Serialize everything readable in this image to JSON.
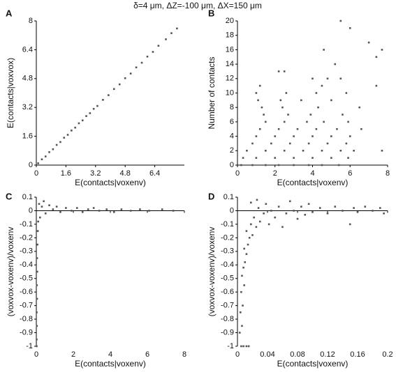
{
  "title": "δ=4 μm, ΔZ=-100 μm, ΔX=150 μm",
  "chart_data": [
    {
      "type": "scatter",
      "label": "A",
      "xlabel": "E(contacts|voxenv)",
      "ylabel": "E(contacts|voxvox)",
      "color": "#555555",
      "xlim": [
        0,
        8
      ],
      "ylim": [
        0,
        8
      ],
      "xticks": [
        0,
        1.6,
        3.2,
        4.8,
        6.4
      ],
      "yticks": [
        0,
        1.6,
        3.2,
        4.8,
        6.4,
        8
      ],
      "x": [
        0.1,
        0.3,
        0.5,
        0.7,
        0.9,
        1.1,
        1.3,
        1.5,
        1.7,
        1.9,
        2.1,
        2.3,
        2.5,
        2.7,
        2.9,
        3.1,
        3.3,
        3.6,
        3.9,
        4.2,
        4.5,
        4.8,
        5.1,
        5.4,
        5.7,
        6.0,
        6.3,
        6.6,
        7.0,
        7.3,
        7.6
      ],
      "values": [
        0.1,
        0.32,
        0.48,
        0.72,
        0.88,
        1.12,
        1.28,
        1.52,
        1.68,
        1.92,
        2.08,
        2.32,
        2.48,
        2.72,
        2.88,
        3.12,
        3.28,
        3.62,
        3.88,
        4.22,
        4.48,
        4.82,
        5.08,
        5.42,
        5.68,
        6.02,
        6.28,
        6.62,
        6.98,
        7.32,
        7.58
      ]
    },
    {
      "type": "scatter",
      "label": "B",
      "xlabel": "E(contacts|voxenv)",
      "ylabel": "Number of contacts",
      "color": "#555555",
      "xlim": [
        0,
        8
      ],
      "ylim": [
        0,
        20
      ],
      "xticks": [
        0,
        2,
        4,
        6,
        8
      ],
      "yticks": [
        0,
        2,
        4,
        6,
        8,
        10,
        12,
        14,
        16,
        18,
        20
      ],
      "x": [
        0.2,
        0.8,
        1.5,
        2.2,
        3,
        3.8,
        4.5,
        5.4,
        0.3,
        1,
        2,
        3,
        4,
        5,
        5.9,
        0.5,
        1.5,
        2.5,
        3.5,
        4.5,
        5.5,
        6.2,
        7.7,
        0.8,
        1.8,
        2.8,
        3.8,
        4.8,
        5.8,
        1,
        2,
        3,
        4,
        5,
        6,
        1.2,
        2.2,
        3.2,
        4.2,
        5.3,
        6.6,
        1.5,
        2.5,
        3.7,
        4.6,
        5.9,
        1.4,
        2.7,
        3.9,
        5.6,
        1.3,
        2.4,
        4.3,
        6.5,
        1.1,
        2.3,
        3.4,
        5,
        1,
        2.6,
        4.2,
        5.8,
        1.2,
        4.5,
        7.4,
        4,
        4.8,
        5.5,
        2.2,
        2.5,
        5.2,
        7.4,
        4.6,
        7.7,
        7,
        6,
        5.5
      ],
      "values": [
        0,
        0,
        0,
        0,
        0,
        0,
        0,
        0,
        1,
        1,
        1,
        1,
        1,
        1,
        1,
        2,
        2,
        2,
        2,
        2,
        2,
        2,
        2,
        3,
        3,
        3,
        3,
        3,
        3,
        4,
        4,
        4,
        4,
        4,
        4,
        5,
        5,
        5,
        5,
        5,
        5,
        6,
        6,
        6,
        6,
        6,
        7,
        7,
        7,
        7,
        8,
        8,
        8,
        8,
        9,
        9,
        9,
        9,
        10,
        10,
        10,
        10,
        11,
        11,
        11,
        12,
        12,
        12,
        13,
        13,
        14,
        15,
        16,
        16,
        17,
        19,
        20
      ]
    },
    {
      "type": "scatter",
      "label": "C",
      "xlabel": "E(contacts|voxenv)",
      "ylabel": "(voxvox-voxenv)/voxenv",
      "color": "#555555",
      "xlim": [
        0,
        8
      ],
      "ylim": [
        -1,
        0.1
      ],
      "xticks": [
        0,
        2,
        4,
        6,
        8
      ],
      "yticks": [
        0.1,
        0,
        -0.1,
        -0.2,
        -0.3,
        -0.4,
        -0.5,
        -0.6,
        -0.7,
        -0.8,
        -0.9,
        -1
      ],
      "x": [
        0.02,
        0.02,
        0.03,
        0.02,
        0.04,
        0.03,
        0.05,
        0.04,
        0.06,
        0.08,
        0.1,
        0.15,
        0.2,
        0.3,
        0.4,
        0.5,
        0.7,
        0.9,
        1.1,
        1.3,
        1.6,
        1.9,
        2.2,
        2.5,
        2.8,
        3.1,
        3.4,
        3.8,
        4.2,
        4.6,
        5.1,
        5.6,
        6.1,
        6.8,
        7.4
      ],
      "values": [
        -1,
        -0.95,
        -0.85,
        -0.75,
        -0.65,
        -0.55,
        -0.45,
        -0.35,
        -0.25,
        -0.15,
        -0.08,
        0.05,
        -0.05,
        0.03,
        0.07,
        -0.02,
        0.04,
        0.01,
        0.03,
        -0.01,
        0.02,
        0,
        0.02,
        -0.01,
        0.01,
        0.02,
        0,
        0.01,
        -0.01,
        0.01,
        0,
        0.01,
        0,
        0.01,
        0
      ]
    },
    {
      "type": "scatter",
      "label": "D",
      "xlabel": "E(contacts|voxenv)",
      "ylabel": "(voxvox-voxenv)/voxenv",
      "color": "#555555",
      "xlim": [
        0,
        0.2
      ],
      "ylim": [
        -1,
        0.1
      ],
      "xticks": [
        0,
        0.04,
        0.08,
        0.12,
        0.16,
        0.2
      ],
      "yticks": [
        0.1,
        0,
        -0.1,
        -0.2,
        -0.3,
        -0.4,
        -0.5,
        -0.6,
        -0.7,
        -0.8,
        -0.9,
        -1
      ],
      "x": [
        0.005,
        0.008,
        0.012,
        0.015,
        0.003,
        0.006,
        0.004,
        0.007,
        0.005,
        0.009,
        0.006,
        0.008,
        0.01,
        0.012,
        0.009,
        0.014,
        0.016,
        0.012,
        0.02,
        0.018,
        0.022,
        0.025,
        0.028,
        0.03,
        0.035,
        0.038,
        0.042,
        0.045,
        0.05,
        0.055,
        0.06,
        0.065,
        0.07,
        0.075,
        0.08,
        0.085,
        0.09,
        0.095,
        0.1,
        0.11,
        0.12,
        0.13,
        0.14,
        0.15,
        0.155,
        0.16,
        0.17,
        0.18,
        0.19,
        0.195,
        0.018,
        0.026
      ],
      "values": [
        -1,
        -1,
        -1,
        -1,
        -0.9,
        -0.85,
        -0.75,
        -0.7,
        -0.6,
        -0.55,
        -0.48,
        -0.42,
        -0.38,
        -0.32,
        -0.28,
        -0.25,
        -0.2,
        -0.15,
        -0.18,
        -0.1,
        -0.05,
        -0.12,
        0.02,
        -0.08,
        -0.02,
        0.05,
        -0.1,
        0,
        -0.05,
        0.03,
        -0.12,
        -0.02,
        0.07,
        0,
        -0.06,
        0.03,
        -0.03,
        0.05,
        -0.01,
        0.02,
        -0.02,
        0.03,
        0,
        -0.1,
        0.02,
        -0.01,
        0.03,
        0,
        0.02,
        -0.02,
        0.06,
        0.08
      ]
    }
  ]
}
